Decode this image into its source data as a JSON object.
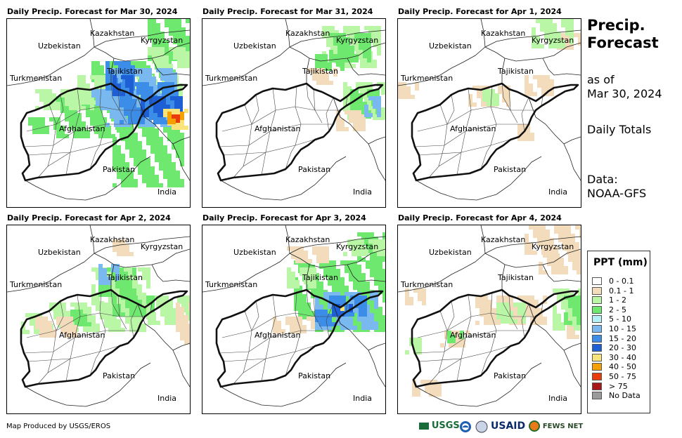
{
  "header": {
    "title": "Precip. Forecast",
    "title_line1": "Precip.",
    "title_line2": "Forecast",
    "asof_line1": "as of",
    "asof_line2": "Mar 30, 2024",
    "daily_totals": "Daily Totals",
    "data_line1": "Data:",
    "data_line2": "NOAA-GFS"
  },
  "panels": [
    {
      "title": "Daily Precip. Forecast for Mar 30, 2024",
      "intensity": "heavy-east"
    },
    {
      "title": "Daily Precip. Forecast for Mar 31, 2024",
      "intensity": "light-northeast"
    },
    {
      "title": "Daily Precip. Forecast for Apr 1, 2024",
      "intensity": "scattered-trace"
    },
    {
      "title": "Daily Precip. Forecast for Apr 2, 2024",
      "intensity": "light-north-east"
    },
    {
      "title": "Daily Precip. Forecast for Apr 3, 2024",
      "intensity": "moderate-east"
    },
    {
      "title": "Daily Precip. Forecast for Apr 4, 2024",
      "intensity": "light-scattered"
    }
  ],
  "country_labels": {
    "kazakhstan": "Kazakhstan",
    "kyrgyzstan": "Kyrgyzstan",
    "uzbekistan": "Uzbekistan",
    "tajikistan": "Tajikistan",
    "turkmenistan": "Turkmenistan",
    "afghanistan": "Afghanistan",
    "pakistan": "Pakistan",
    "india": "India"
  },
  "legend": {
    "title": "PPT (mm)",
    "items": [
      {
        "label": "0 - 0.1",
        "color": "#ffffff"
      },
      {
        "label": "0.1 - 1",
        "color": "#f3dcbc"
      },
      {
        "label": "1 - 2",
        "color": "#b9f6a6"
      },
      {
        "label": "2 - 5",
        "color": "#6ee86e"
      },
      {
        "label": "5 - 10",
        "color": "#b4f0f5"
      },
      {
        "label": "10 - 15",
        "color": "#7ab8f0"
      },
      {
        "label": "15 - 20",
        "color": "#3c8de8"
      },
      {
        "label": "20 - 30",
        "color": "#1f5fd6"
      },
      {
        "label": "30 - 40",
        "color": "#f8e47a"
      },
      {
        "label": "40 - 50",
        "color": "#f5a000"
      },
      {
        "label": "50 - 75",
        "color": "#ea3c0a"
      },
      {
        "label": "> 75",
        "color": "#a81818"
      },
      {
        "label": "No Data",
        "color": "#9a9a9a"
      }
    ]
  },
  "footer": {
    "credit": "Map Produced by USGS/EROS",
    "logo_usgs": "USGS",
    "logo_usaid": "USAID",
    "logo_fewsnet": "FEWS NET"
  }
}
